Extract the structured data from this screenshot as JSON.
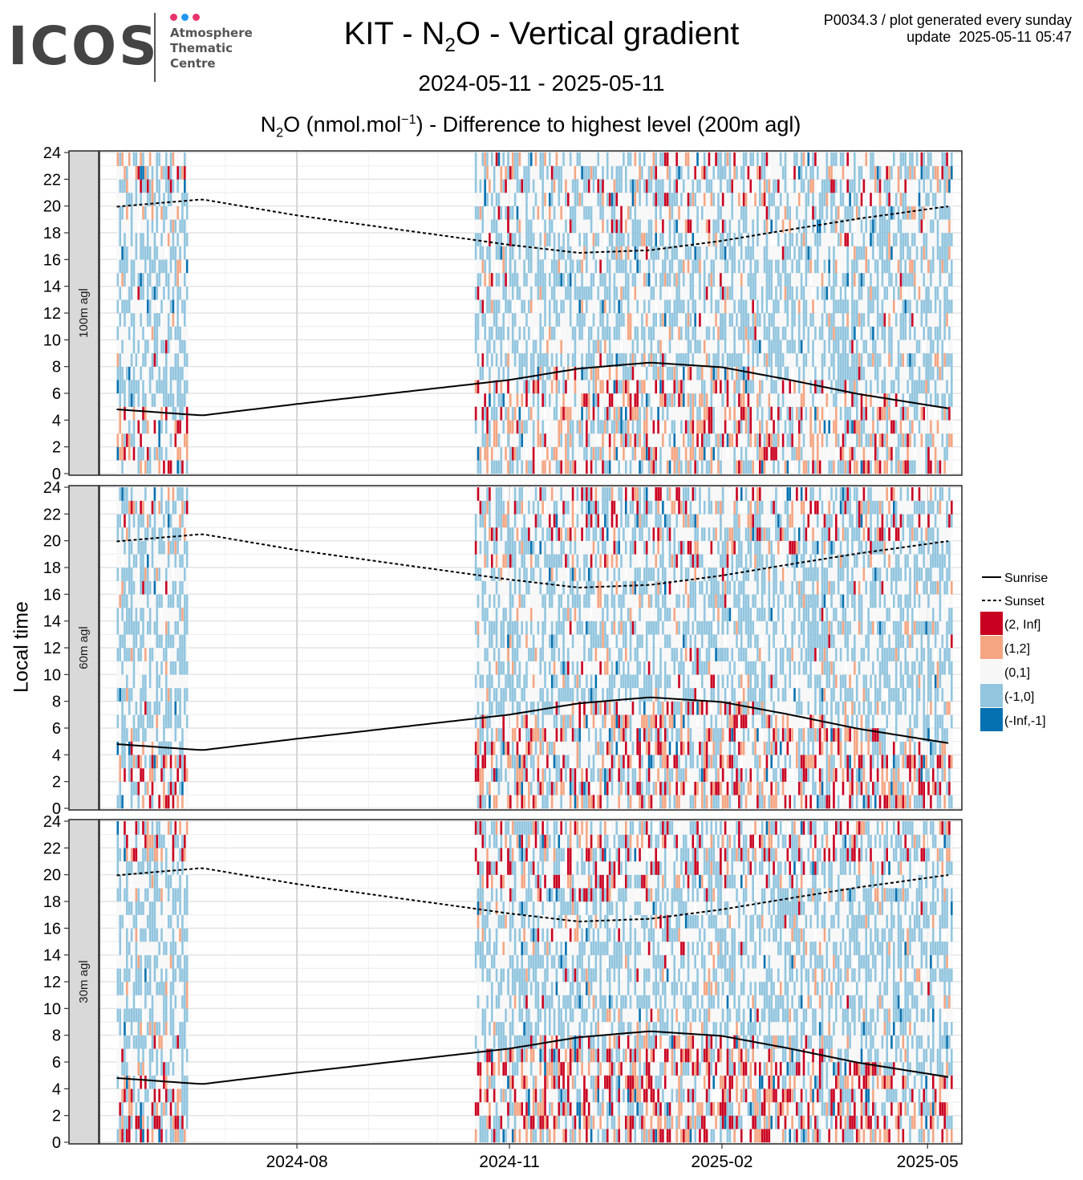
{
  "header": {
    "logo_text": "ICOS",
    "logo_sub": [
      "Atmosphere",
      "Thematic",
      "Centre"
    ],
    "logo_dot_colors": [
      "#e8336b",
      "#2196f3",
      "#e8336b"
    ],
    "title_prefix": "KIT - N",
    "title_sub": "2",
    "title_suffix": "O - Vertical gradient",
    "date_range": "2024-05-11 - 2025-05-11",
    "meta_line1": "P0034.3 / plot generated every sunday",
    "meta_line2": "update  2025-05-11 05:47"
  },
  "chart_data": {
    "type": "heatmap",
    "title_prefix": "N",
    "title_sub": "2",
    "title_mid": "O (nmol.mol",
    "title_sup": "−1",
    "title_suffix": ") - Difference to highest level (200m agl)",
    "ylabel": "Local time",
    "xlabel": "",
    "x_range": [
      "2024-05-11",
      "2025-05-11"
    ],
    "y_range": [
      0,
      24
    ],
    "x_ticks": [
      "2024-08",
      "2024-11",
      "2025-02",
      "2025-05"
    ],
    "x_tick_dates": [
      "2024-08-01",
      "2024-11-01",
      "2025-02-01",
      "2025-05-01"
    ],
    "y_ticks": [
      0,
      2,
      4,
      6,
      8,
      10,
      12,
      14,
      16,
      18,
      20,
      22,
      24
    ],
    "grid": true,
    "data_periods": [
      [
        "2024-05-15",
        "2024-06-14"
      ],
      [
        "2024-10-17",
        "2025-05-11"
      ]
    ],
    "panels": [
      "100m agl",
      "60m agl",
      "30m agl"
    ],
    "legend_position": "right",
    "legend": {
      "lines": [
        {
          "name": "Sunrise",
          "style": "solid"
        },
        {
          "name": "Sunset",
          "style": "dashed"
        }
      ],
      "bins": [
        {
          "label": "(2, Inf]",
          "color": "#ca0020"
        },
        {
          "label": "(1,2]",
          "color": "#f4a582"
        },
        {
          "label": "(0,1]",
          "color": "#f7f7f7"
        },
        {
          "label": "(-1,0]",
          "color": "#92c5de"
        },
        {
          "label": "(-Inf,-1]",
          "color": "#0571b0"
        }
      ]
    },
    "sunrise": [
      {
        "date": "2024-05-15",
        "hour": 4.8
      },
      {
        "date": "2024-06-21",
        "hour": 4.35
      },
      {
        "date": "2024-08-01",
        "hour": 5.2
      },
      {
        "date": "2024-11-01",
        "hour": 7.0
      },
      {
        "date": "2024-12-01",
        "hour": 7.85
      },
      {
        "date": "2025-01-01",
        "hour": 8.3
      },
      {
        "date": "2025-02-01",
        "hour": 7.95
      },
      {
        "date": "2025-03-01",
        "hour": 7.05
      },
      {
        "date": "2025-04-01",
        "hour": 5.95
      },
      {
        "date": "2025-05-11",
        "hour": 4.85
      }
    ],
    "sunset": [
      {
        "date": "2024-05-15",
        "hour": 19.95
      },
      {
        "date": "2024-06-21",
        "hour": 20.5
      },
      {
        "date": "2024-08-01",
        "hour": 19.3
      },
      {
        "date": "2024-11-01",
        "hour": 17.1
      },
      {
        "date": "2024-12-01",
        "hour": 16.5
      },
      {
        "date": "2025-01-01",
        "hour": 16.7
      },
      {
        "date": "2025-02-01",
        "hour": 17.4
      },
      {
        "date": "2025-03-01",
        "hour": 18.2
      },
      {
        "date": "2025-04-01",
        "hour": 19.05
      },
      {
        "date": "2025-05-11",
        "hour": 20.0
      }
    ]
  }
}
